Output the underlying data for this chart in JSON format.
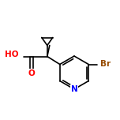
{
  "background_color": "#ffffff",
  "bond_color": "#000000",
  "atom_colors": {
    "O": "#ff0000",
    "N": "#0000ff",
    "Br": "#964B00",
    "C": "#000000",
    "H": "#000000"
  },
  "figsize": [
    1.52,
    1.52
  ],
  "dpi": 100
}
